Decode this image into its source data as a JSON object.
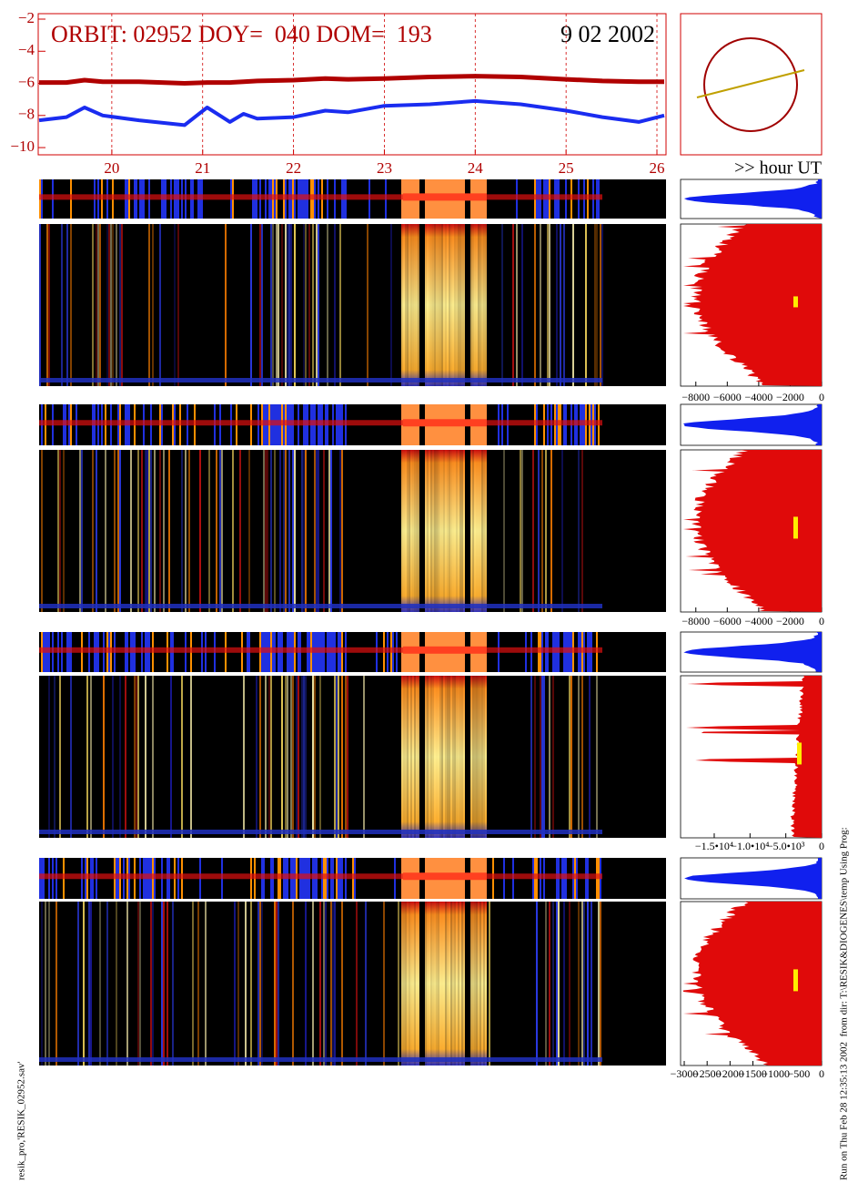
{
  "header": {
    "title": "ORBIT: 02952 DOY=  040 DOM=  193",
    "date": "9 02 2002",
    "x_unit": ">> hour UT",
    "left_note": "resik_pro,'RESIK_02952.sav'",
    "right_note": "Run on Thu Feb 28 12:35:13 2002  from dir: T:\\RESIK&DIOGENES\\temp Using Prog:"
  },
  "chart_data": [
    {
      "type": "line",
      "grid": true,
      "x": [
        19.2,
        19.5,
        19.7,
        19.9,
        20.3,
        20.8,
        21.05,
        21.3,
        21.45,
        21.6,
        22.0,
        22.35,
        22.6,
        23.0,
        23.5,
        24.0,
        24.5,
        25.0,
        25.4,
        25.8,
        26.08
      ],
      "series": [
        {
          "color": "#b00000",
          "values": [
            -5.95,
            -5.95,
            -5.8,
            -5.9,
            -5.9,
            -6.0,
            -5.95,
            -5.95,
            -5.9,
            -5.85,
            -5.8,
            -5.7,
            -5.75,
            -5.7,
            -5.6,
            -5.55,
            -5.6,
            -5.75,
            -5.85,
            -5.9,
            -5.9
          ]
        },
        {
          "color": "#1a2cf0",
          "values": [
            -8.3,
            -8.1,
            -7.5,
            -8.0,
            -8.3,
            -8.6,
            -7.5,
            -8.4,
            -7.9,
            -8.2,
            -8.1,
            -7.7,
            -7.8,
            -7.4,
            -7.3,
            -7.1,
            -7.3,
            -7.7,
            -8.1,
            -8.4,
            -8.0
          ]
        }
      ],
      "xlim": [
        19.19,
        26.1
      ],
      "xticks": [
        20,
        21,
        22,
        23,
        24,
        25,
        26
      ],
      "ylim": [
        -10.45,
        -1.66
      ],
      "yticks": [
        {
          "value": -2,
          "label": "−2"
        },
        {
          "value": -4,
          "label": "−4"
        },
        {
          "value": -6,
          "label": "−6"
        },
        {
          "value": -8,
          "label": "−8"
        },
        {
          "value": -10,
          "label": "−10"
        }
      ]
    },
    {
      "type": "area",
      "xlim": [
        -8970,
        0
      ],
      "xticks": [
        {
          "value": -8000,
          "label": "−8000"
        },
        {
          "value": -6000,
          "label": "−6000"
        },
        {
          "value": -4000,
          "label": "−4000"
        },
        {
          "value": -2000,
          "label": "−2000"
        },
        0
      ]
    },
    {
      "type": "area",
      "xlim": [
        -8970,
        0
      ],
      "xticks": [
        {
          "value": -8000,
          "label": "−8000"
        },
        {
          "value": -6000,
          "label": "−6000"
        },
        {
          "value": -4000,
          "label": "−4000"
        },
        {
          "value": -2000,
          "label": "−2000"
        },
        0
      ]
    },
    {
      "type": "area",
      "xlim": [
        -19700,
        0
      ],
      "xticks": [
        {
          "value": -15000,
          "label": "−1.5•10⁴"
        },
        {
          "value": -10000,
          "label": "−1.0•10⁴"
        },
        {
          "value": -5000,
          "label": "−5.0•10³"
        },
        0
      ]
    },
    {
      "type": "area",
      "xlim": [
        -3080,
        0
      ],
      "xticks": [
        {
          "value": -3000,
          "label": "−3000"
        },
        {
          "value": -2500,
          "label": "−2500"
        },
        {
          "value": -2000,
          "label": "−2000"
        },
        {
          "value": -1500,
          "label": "−1500"
        },
        {
          "value": -1000,
          "label": "−1000"
        },
        {
          "value": -500,
          "label": "−500"
        },
        0
      ]
    }
  ]
}
